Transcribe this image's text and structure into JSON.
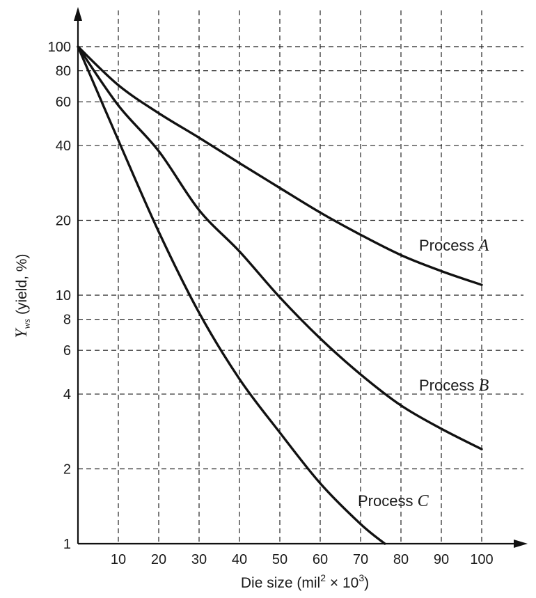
{
  "chart_data": {
    "type": "line",
    "xlabel": {
      "prefix": "Die size (mil",
      "sup1": "2",
      "mid": " × 10",
      "sup2": "3",
      "suffix": ")"
    },
    "ylabel": {
      "symbol": "Y",
      "subscript": "ws",
      "text": " (yield, %)"
    },
    "x_ticks": [
      10,
      20,
      30,
      40,
      50,
      60,
      70,
      80,
      90,
      100
    ],
    "y_ticks": [
      1,
      2,
      4,
      6,
      8,
      10,
      20,
      40,
      60,
      80,
      100
    ],
    "xlim": [
      0,
      100
    ],
    "ylim": [
      1,
      100
    ],
    "y_scale": "log",
    "grid": true,
    "series": [
      {
        "name": "Process A",
        "label_prefix": "Process ",
        "label_letter": "A",
        "x": [
          0,
          10,
          20,
          30,
          40,
          50,
          60,
          70,
          80,
          90,
          100
        ],
        "y": [
          100,
          70,
          54,
          43,
          34,
          27,
          21.5,
          17.5,
          14.5,
          12.5,
          11
        ]
      },
      {
        "name": "Process B",
        "label_prefix": "Process ",
        "label_letter": "B",
        "x": [
          0,
          10,
          20,
          30,
          40,
          50,
          60,
          70,
          80,
          90,
          100
        ],
        "y": [
          100,
          58,
          38,
          22,
          15,
          9.8,
          6.7,
          4.8,
          3.6,
          2.9,
          2.4
        ]
      },
      {
        "name": "Process C",
        "label_prefix": "Process ",
        "label_letter": "C",
        "x": [
          0,
          10,
          20,
          30,
          40,
          50,
          60,
          70,
          76
        ],
        "y": [
          100,
          42,
          18,
          8.5,
          4.6,
          2.8,
          1.75,
          1.2,
          1.0
        ]
      }
    ]
  }
}
